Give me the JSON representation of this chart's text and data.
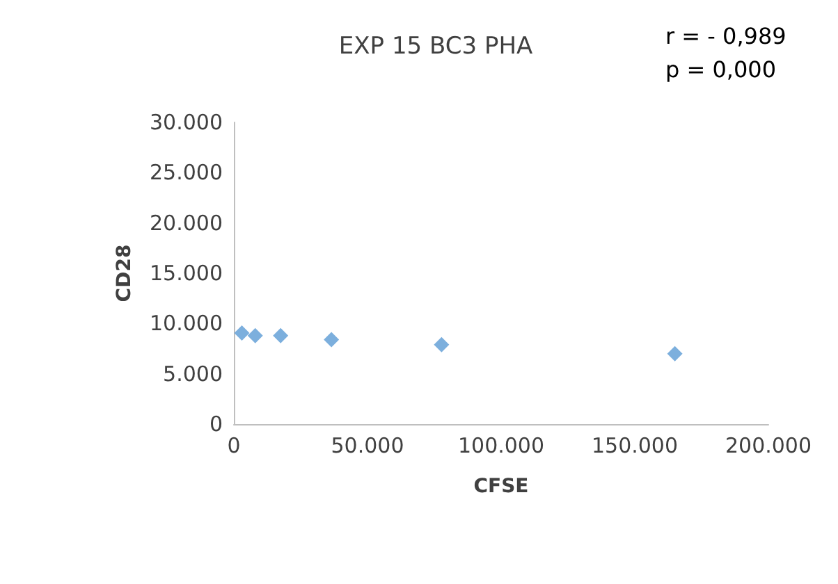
{
  "chart_data": {
    "type": "scatter",
    "title": "EXP 15 BC3 PHA",
    "xlabel": "CFSE",
    "ylabel": "CD28",
    "annotations": [
      "r = - 0,989",
      "p = 0,000"
    ],
    "x": [
      3000,
      8000,
      17500,
      36500,
      77700,
      165000
    ],
    "values": [
      9050,
      8800,
      8800,
      8400,
      7900,
      7000
    ],
    "color": "#5b9bd5",
    "marker": "diamond",
    "grid": false,
    "xlim": [
      0,
      200000
    ],
    "xticks": [
      0,
      {
        "value": 50000,
        "label": "50.000"
      },
      {
        "value": 100000,
        "label": "100.000"
      },
      {
        "value": 150000,
        "label": "150.000"
      },
      {
        "value": 200000,
        "label": "200.000"
      }
    ],
    "ylim": [
      0,
      30000
    ],
    "yticks": [
      0,
      {
        "value": 5000,
        "label": "5.000"
      },
      {
        "value": 10000,
        "label": "10.000"
      },
      {
        "value": 15000,
        "label": "15.000"
      },
      {
        "value": 20000,
        "label": "20.000"
      },
      {
        "value": 25000,
        "label": "25.000"
      },
      {
        "value": 30000,
        "label": "30.000"
      }
    ]
  }
}
